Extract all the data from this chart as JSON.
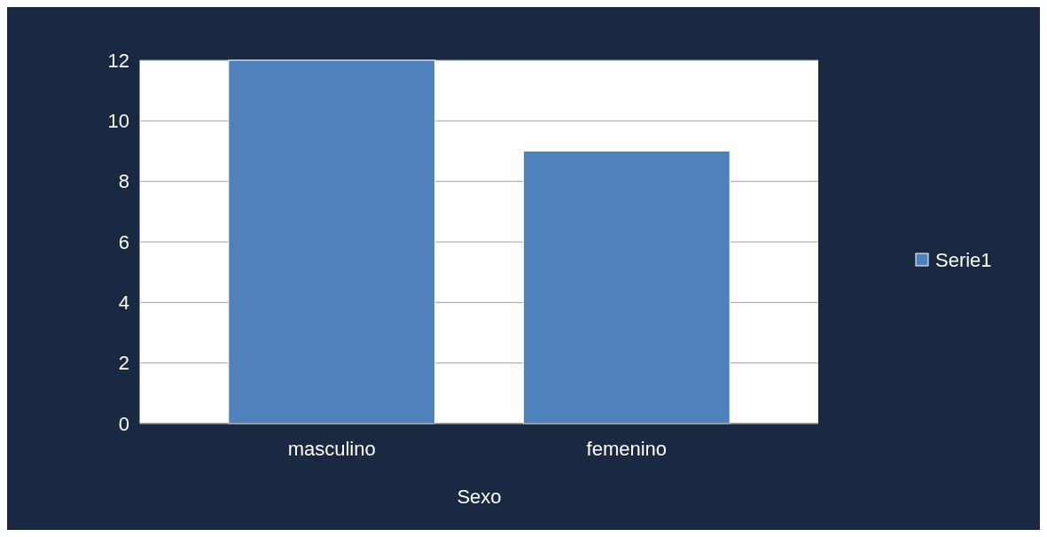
{
  "chart_data": {
    "type": "bar",
    "xlabel": "Sexo",
    "categories": [
      "masculino",
      "femenino"
    ],
    "series": [
      {
        "name": "Serie1",
        "color": "#4f81bd",
        "values": [
          12,
          9
        ]
      }
    ],
    "ylim": [
      0,
      12
    ],
    "yticks": [
      0,
      2,
      4,
      6,
      8,
      10,
      12
    ],
    "grid": "y",
    "legend": "right"
  }
}
